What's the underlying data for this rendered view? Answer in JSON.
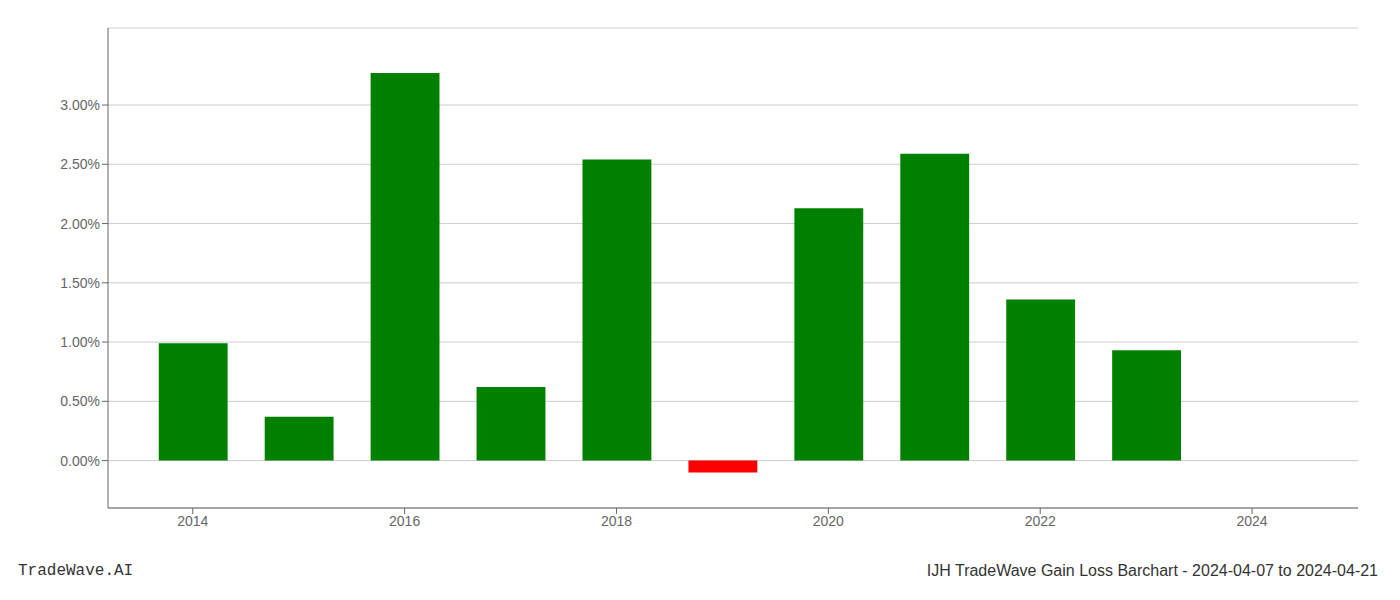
{
  "chart_data": {
    "type": "bar",
    "title": "IJH TradeWave Gain Loss Barchart - 2024-04-07 to 2024-04-21",
    "watermark": "TradeWave.AI",
    "x": [
      2014,
      2015,
      2016,
      2017,
      2018,
      2019,
      2020,
      2021,
      2022,
      2023
    ],
    "values": [
      0.0099,
      0.0037,
      0.0327,
      0.0062,
      0.0254,
      -0.001,
      0.0213,
      0.0259,
      0.0136,
      0.0093
    ],
    "colors": [
      "#008000",
      "#008000",
      "#008000",
      "#008000",
      "#008000",
      "#ff0000",
      "#008000",
      "#008000",
      "#008000",
      "#008000"
    ],
    "xlim": [
      2013.2,
      2025.0
    ],
    "xticks": [
      2014,
      2016,
      2018,
      2020,
      2022,
      2024
    ],
    "ylim": [
      -0.004,
      0.0365
    ],
    "yticks": [
      {
        "value": 0.0,
        "label": "0.00%"
      },
      {
        "value": 0.005,
        "label": "0.50%"
      },
      {
        "value": 0.01,
        "label": "1.00%"
      },
      {
        "value": 0.015,
        "label": "1.50%"
      },
      {
        "value": 0.02,
        "label": "2.00%"
      },
      {
        "value": 0.025,
        "label": "2.50%"
      },
      {
        "value": 0.03,
        "label": "3.00%"
      }
    ],
    "grid": true
  }
}
